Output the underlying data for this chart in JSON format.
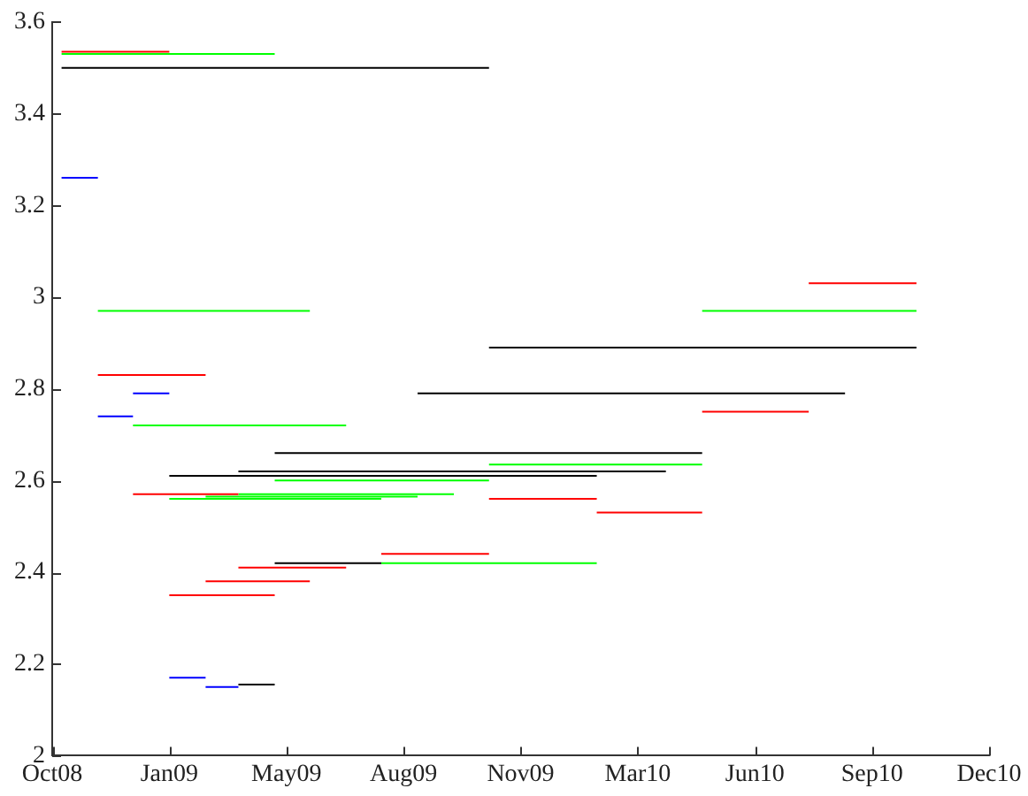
{
  "chart_data": {
    "type": "line",
    "xlim": [
      "2008-10-20",
      "2010-12-29"
    ],
    "xticks": [
      {
        "value": "2008-10-20",
        "label": "Oct08"
      },
      {
        "value": "2009-01-28",
        "label": "Jan09"
      },
      {
        "value": "2009-05-08",
        "label": "May09"
      },
      {
        "value": "2009-08-16",
        "label": "Aug09"
      },
      {
        "value": "2009-11-24",
        "label": "Nov09"
      },
      {
        "value": "2010-03-04",
        "label": "Mar10"
      },
      {
        "value": "2010-06-12",
        "label": "Jun10"
      },
      {
        "value": "2010-09-20",
        "label": "Sep10"
      },
      {
        "value": "2010-12-29",
        "label": "Dec10"
      }
    ],
    "ylim": [
      2,
      3.6
    ],
    "yticks": [
      2,
      2.2,
      2.4,
      2.6,
      2.8,
      3,
      3.2,
      3.4,
      3.6
    ],
    "grid": false,
    "legend": false,
    "marker": "none",
    "series": [
      {
        "color": "#000000",
        "x": [
          "2008-10-28",
          "2009-10-28"
        ],
        "values": [
          3.5,
          3.5
        ]
      },
      {
        "color": "#00ff00",
        "x": [
          "2008-10-28",
          "2009-04-28"
        ],
        "values": [
          3.53,
          3.53
        ]
      },
      {
        "color": "#ff0000",
        "x": [
          "2008-10-28",
          "2009-01-28"
        ],
        "values": [
          3.535,
          3.535
        ]
      },
      {
        "color": "#0000ff",
        "x": [
          "2008-10-28",
          "2008-11-28"
        ],
        "values": [
          3.26,
          3.26
        ]
      },
      {
        "color": "#00ff00",
        "x": [
          "2008-11-28",
          "2009-05-28"
        ],
        "values": [
          2.97,
          2.97
        ]
      },
      {
        "color": "#ff0000",
        "x": [
          "2008-11-28",
          "2009-02-28"
        ],
        "values": [
          2.83,
          2.83
        ]
      },
      {
        "color": "#0000ff",
        "x": [
          "2008-11-28",
          "2008-12-28"
        ],
        "values": [
          2.74,
          2.74
        ]
      },
      {
        "color": "#0000ff",
        "x": [
          "2008-12-28",
          "2009-01-28"
        ],
        "values": [
          2.79,
          2.79
        ]
      },
      {
        "color": "#00ff00",
        "x": [
          "2008-12-28",
          "2009-06-28"
        ],
        "values": [
          2.72,
          2.72
        ]
      },
      {
        "color": "#ff0000",
        "x": [
          "2008-12-28",
          "2009-03-28"
        ],
        "values": [
          2.57,
          2.57
        ]
      },
      {
        "color": "#000000",
        "x": [
          "2009-01-28",
          "2010-01-28"
        ],
        "values": [
          2.61,
          2.61
        ]
      },
      {
        "color": "#00ff00",
        "x": [
          "2009-01-28",
          "2009-07-28"
        ],
        "values": [
          2.56,
          2.56
        ]
      },
      {
        "color": "#ff0000",
        "x": [
          "2009-01-28",
          "2009-04-28"
        ],
        "values": [
          2.35,
          2.35
        ]
      },
      {
        "color": "#0000ff",
        "x": [
          "2009-01-28",
          "2009-02-28"
        ],
        "values": [
          2.17,
          2.17
        ]
      },
      {
        "color": "#00ff00",
        "x": [
          "2009-02-28",
          "2009-08-28"
        ],
        "values": [
          2.565,
          2.565
        ]
      },
      {
        "color": "#ff0000",
        "x": [
          "2009-02-28",
          "2009-05-28"
        ],
        "values": [
          2.38,
          2.38
        ]
      },
      {
        "color": "#0000ff",
        "x": [
          "2009-02-28",
          "2009-03-28"
        ],
        "values": [
          2.15,
          2.15
        ]
      },
      {
        "color": "#000000",
        "x": [
          "2009-03-28",
          "2010-03-28"
        ],
        "values": [
          2.62,
          2.62
        ]
      },
      {
        "color": "#00ff00",
        "x": [
          "2009-03-28",
          "2009-09-28"
        ],
        "values": [
          2.57,
          2.57
        ]
      },
      {
        "color": "#ff0000",
        "x": [
          "2009-03-28",
          "2009-06-28"
        ],
        "values": [
          2.41,
          2.41
        ]
      },
      {
        "color": "#000000",
        "x": [
          "2009-03-28",
          "2009-04-28"
        ],
        "values": [
          2.155,
          2.155
        ]
      },
      {
        "color": "#000000",
        "x": [
          "2009-04-28",
          "2010-04-28"
        ],
        "values": [
          2.66,
          2.66
        ]
      },
      {
        "color": "#00ff00",
        "x": [
          "2009-04-28",
          "2009-10-28"
        ],
        "values": [
          2.6,
          2.6
        ]
      },
      {
        "color": "#000000",
        "x": [
          "2009-04-28",
          "2009-07-28"
        ],
        "values": [
          2.42,
          2.42
        ]
      },
      {
        "color": "#ff0000",
        "x": [
          "2009-07-28",
          "2009-10-28"
        ],
        "values": [
          2.44,
          2.44
        ]
      },
      {
        "color": "#00ff00",
        "x": [
          "2009-07-28",
          "2010-01-28"
        ],
        "values": [
          2.42,
          2.42
        ]
      },
      {
        "color": "#000000",
        "x": [
          "2009-08-28",
          "2010-08-28"
        ],
        "values": [
          2.79,
          2.79
        ]
      },
      {
        "color": "#000000",
        "x": [
          "2009-10-28",
          "2010-10-28"
        ],
        "values": [
          2.89,
          2.89
        ]
      },
      {
        "color": "#00ff00",
        "x": [
          "2009-10-28",
          "2010-04-28"
        ],
        "values": [
          2.635,
          2.635
        ]
      },
      {
        "color": "#ff0000",
        "x": [
          "2009-10-28",
          "2010-01-28"
        ],
        "values": [
          2.56,
          2.56
        ]
      },
      {
        "color": "#ff0000",
        "x": [
          "2010-01-28",
          "2010-04-28"
        ],
        "values": [
          2.53,
          2.53
        ]
      },
      {
        "color": "#ff0000",
        "x": [
          "2010-04-28",
          "2010-07-28"
        ],
        "values": [
          2.75,
          2.75
        ]
      },
      {
        "color": "#00ff00",
        "x": [
          "2010-04-28",
          "2010-10-28"
        ],
        "values": [
          2.97,
          2.97
        ]
      },
      {
        "color": "#ff0000",
        "x": [
          "2010-07-28",
          "2010-10-28"
        ],
        "values": [
          3.03,
          3.03
        ]
      }
    ]
  }
}
